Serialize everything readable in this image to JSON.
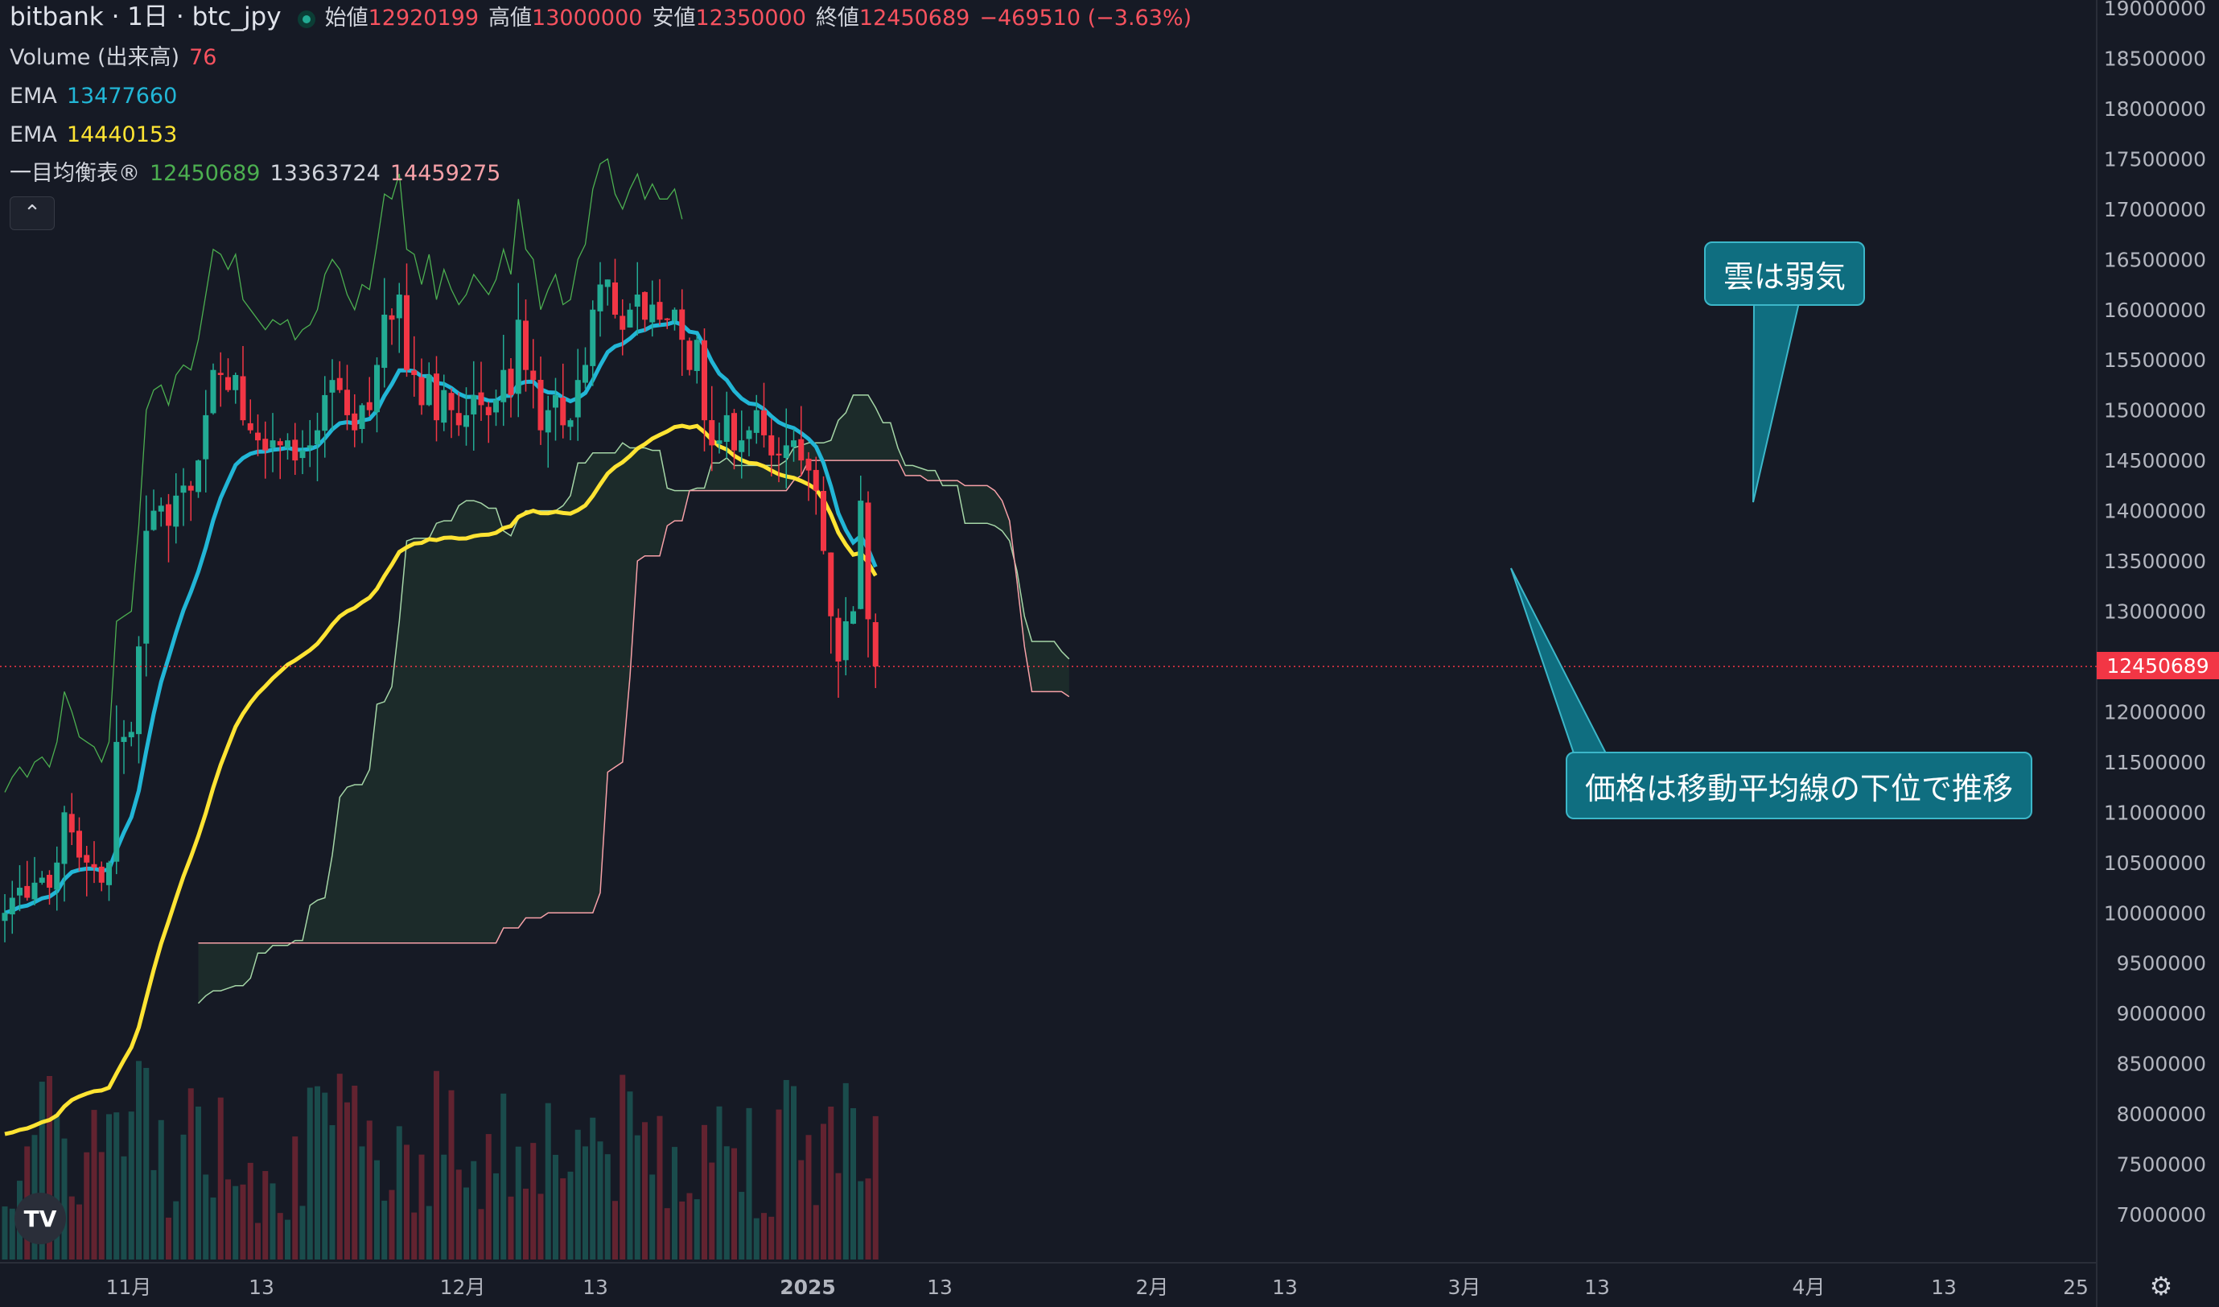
{
  "header": {
    "symbol": "bitbank · 1日 · btc_jpy",
    "open_label": "始値",
    "open": "12920199",
    "high_label": "高値",
    "high": "13000000",
    "low_label": "安値",
    "low": "12350000",
    "close_label": "終値",
    "close": "12450689",
    "change": "−469510 (−3.63%)"
  },
  "indicators": {
    "volume": {
      "label": "Volume (出来高)",
      "value": "76",
      "color": "#f7525f"
    },
    "ema1": {
      "label": "EMA",
      "value": "13477660",
      "color": "#22b6d6"
    },
    "ema2": {
      "label": "EMA",
      "value": "14440153",
      "color": "#ffe433"
    },
    "ichimoku": {
      "label": "一目均衡表®",
      "values": [
        "12450689",
        "13363724",
        "14459275"
      ],
      "colors": [
        "#4caf50",
        "#d1d4dc",
        "#f7a1a8"
      ]
    }
  },
  "annotations": {
    "cloud_weak": "雲は弱気",
    "price_below_ma": "価格は移動平均線の下位で推移"
  },
  "icons": {
    "collapse": "chevron-up-icon",
    "logo": "tradingview-logo-icon",
    "settings": "settings-icon"
  },
  "colors": {
    "up": "#22ab94",
    "down": "#f23645",
    "background": "#161a25",
    "ema_fast": "#22b6d6",
    "ema_slow": "#ffe433",
    "lagging": "#4caf50",
    "span_a": "#a5d6a7",
    "span_b": "#f7a1a8"
  },
  "last_price_tag": "12450689",
  "chart_data": {
    "type": "candlestick",
    "y_axis": {
      "ticks": [
        19000000,
        18500000,
        18000000,
        17500000,
        17000000,
        16500000,
        16000000,
        15500000,
        15000000,
        14500000,
        14000000,
        13500000,
        13000000,
        12500000,
        12000000,
        11500000,
        11000000,
        10500000,
        10000000,
        9500000,
        9000000,
        8500000,
        8000000,
        7500000,
        7000000
      ],
      "tick_labels": [
        "19000000",
        "18500000",
        "18000000",
        "17500000",
        "17000000",
        "16500000",
        "16000000",
        "15500000",
        "15000000",
        "14500000",
        "14000000",
        "13500000",
        "13000000",
        "12500000",
        "12000000",
        "11500000",
        "11000000",
        "10500000",
        "10000000",
        "9500000",
        "9000000",
        "8500000",
        "8000000",
        "7500000",
        "7000000"
      ]
    },
    "x_axis": {
      "tick_labels": [
        "11月",
        "13",
        "12月",
        "13",
        "2025",
        "13",
        "2月",
        "13",
        "3月",
        "13",
        "4月",
        "13",
        "25"
      ]
    },
    "ema_fast_value": 13477660,
    "ema_slow_value": 14440153,
    "last_price": 12450689,
    "ohlc_close_series": [
      10000000,
      10150000,
      10250000,
      10150000,
      10300000,
      10350000,
      10250000,
      10500000,
      11000000,
      10800000,
      10550000,
      10500000,
      10450000,
      10300000,
      10500000,
      11700000,
      11750000,
      11800000,
      12650000,
      13800000,
      14000000,
      14050000,
      13850000,
      14150000,
      14250000,
      14200000,
      14500000,
      14950000,
      15400000,
      15350000,
      15200000,
      15350000,
      14900000,
      14800000,
      14700000,
      14600000,
      14700000,
      14650000,
      14700000,
      14500000,
      14600000,
      14650000,
      14800000,
      15150000,
      15300000,
      15200000,
      14950000,
      14800000,
      15050000,
      15000000,
      15450000,
      15950000,
      15900000,
      16150000,
      15400000,
      15350000,
      15050000,
      15350000,
      14900000,
      15200000,
      15000000,
      14850000,
      14950000,
      15150000,
      15050000,
      14950000,
      15100000,
      15400000,
      15150000,
      15900000,
      15400000,
      15300000,
      14800000,
      15000000,
      15150000,
      14850000,
      14900000,
      15300000,
      15450000,
      16000000,
      16250000,
      16300000,
      15950000,
      15800000,
      16000000,
      16150000,
      15900000,
      16050000,
      15900000,
      15900000,
      16000000,
      15700000,
      15400000,
      15700000,
      14900000,
      14650000,
      14700000,
      14950000,
      14600000,
      14700000,
      14800000,
      15000000,
      14750000,
      14550000,
      14550000,
      14650000,
      14700000,
      14500000,
      14400000,
      14200000,
      13600000,
      12950000,
      12500000,
      12900000,
      13000000,
      14100000,
      12920199,
      12450689
    ],
    "volume_note": "Volume bars colored by candle direction"
  }
}
